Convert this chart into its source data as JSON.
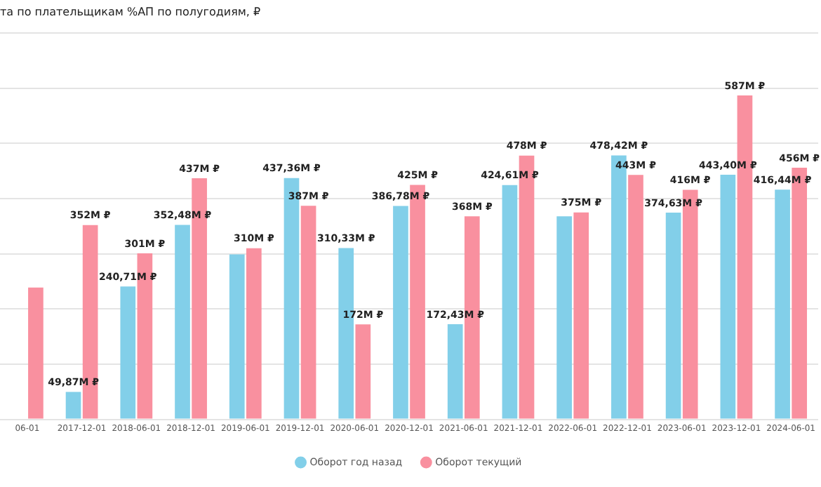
{
  "chart_data": {
    "type": "bar",
    "title": "та по плательщикам %АП по полугодиям, ₽",
    "categories": [
      "06-01",
      "2017-12-01",
      "2018-06-01",
      "2018-12-01",
      "2019-06-01",
      "2019-12-01",
      "2020-06-01",
      "2020-12-01",
      "2021-06-01",
      "2021-12-01",
      "2022-06-01",
      "2022-12-01",
      "2023-06-01",
      "2023-12-01",
      "2024-06-01"
    ],
    "series": [
      {
        "name": "Оборот год назад",
        "color": "#82cfe9",
        "values": [
          null,
          49.87,
          240.71,
          352.48,
          299,
          437.36,
          310.33,
          386.78,
          172.43,
          424.61,
          368,
          478.42,
          374.63,
          443.4,
          416.44
        ],
        "value_labels": [
          null,
          "49,87M ₽",
          "240,71M ₽",
          "352,48M ₽",
          null,
          "437,36M ₽",
          "310,33M ₽",
          "386,78M ₽",
          "172,43M ₽",
          "424,61M ₽",
          null,
          "478,42M ₽",
          "374,63M ₽",
          "443,40M ₽",
          "416,44M ₽"
        ]
      },
      {
        "name": "Оборот текущий",
        "color": "#f9909f",
        "values": [
          239,
          352,
          301,
          437,
          310,
          387,
          172,
          425,
          368,
          478,
          375,
          443,
          416,
          587,
          456
        ],
        "value_labels": [
          null,
          "352M ₽",
          "301M ₽",
          "437M ₽",
          "310M ₽",
          "387M ₽",
          "172M ₽",
          "425M ₽",
          "368M ₽",
          "478M ₽",
          "375M ₽",
          "443M ₽",
          "416M ₽",
          "587M ₽",
          "456M ₽"
        ]
      }
    ],
    "ylim": [
      0,
      700
    ],
    "yticks": [
      {
        "value": 0,
        "label": null
      },
      {
        "value": 100,
        "label": null
      },
      {
        "value": 200,
        "label": null
      },
      {
        "value": 300,
        "label": null
      },
      {
        "value": 400,
        "label": null
      },
      {
        "value": 500,
        "label": null
      },
      {
        "value": 600,
        "label": null
      },
      {
        "value": 700,
        "label": null
      }
    ],
    "grid": "y",
    "legend": "bottom",
    "tick_labels": "x"
  }
}
